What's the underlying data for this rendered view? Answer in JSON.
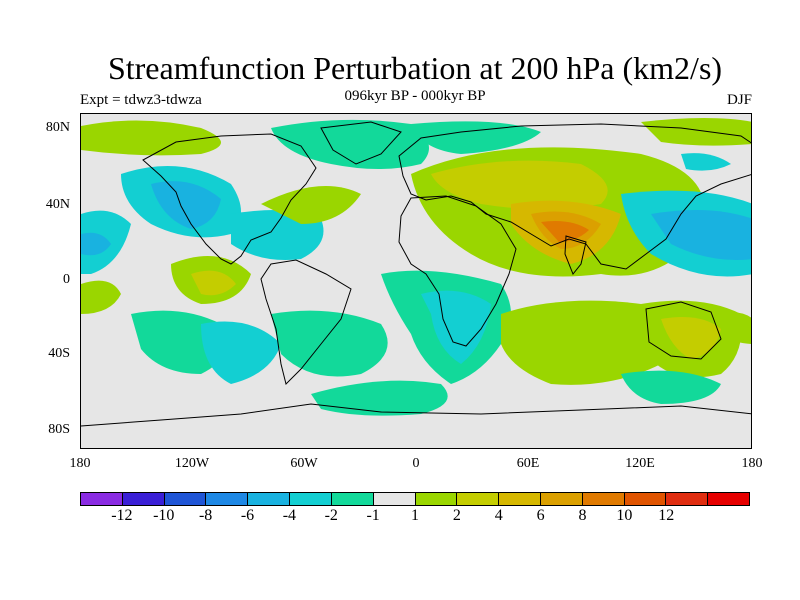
{
  "title": "Streamfunction Perturbation at 200 hPa (km2/s)",
  "left_label": "Expt = tdwz3-tdwza",
  "center_label": "096kyr BP - 000kyr BP",
  "right_label": "DJF",
  "lat_labels": [
    "80N",
    "40N",
    "0",
    "40S",
    "80S"
  ],
  "lon_labels": [
    "180",
    "120W",
    "60W",
    "0",
    "60E",
    "120E",
    "180"
  ],
  "colorbar": {
    "colors": [
      "#8a2be2",
      "#3a1fd6",
      "#1f55d6",
      "#1e88e5",
      "#19b2e0",
      "#13cfd2",
      "#12d99a",
      "#e6e6e6",
      "#9ad600",
      "#c4cd00",
      "#d6b800",
      "#dba000",
      "#e07a00",
      "#e05400",
      "#e02d10",
      "#e60000"
    ],
    "labels": [
      "-12",
      "-10",
      "-8",
      "-6",
      "-4",
      "-2",
      "-1",
      "1",
      "2",
      "4",
      "6",
      "8",
      "10",
      "12"
    ]
  },
  "colors": {
    "cyan": "#13cfd2",
    "blue": "#19b2e0",
    "deepblue": "#1e88e5",
    "mint": "#12d99a",
    "green": "#9ad600",
    "yellowgreen": "#c4cd00",
    "gold": "#d6b800",
    "orange": "#dba000",
    "darkorange": "#e07a00"
  }
}
